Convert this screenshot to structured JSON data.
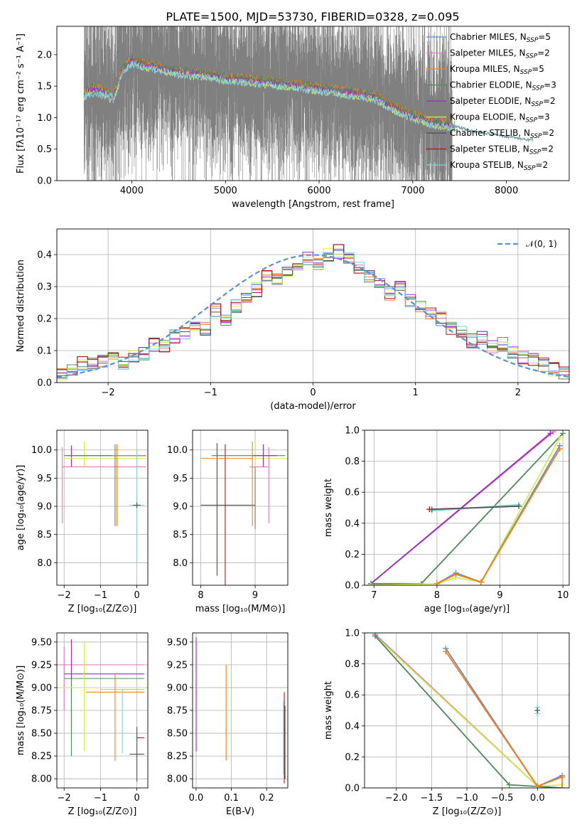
{
  "figure_title": "PLATE=1500, MJD=53730, FIBERID=0328, z=0.095",
  "colors": {
    "spectrum": "#808080",
    "chabrier_miles": "#5b8fd6",
    "salpeter_miles": "#e377c2",
    "kroupa_miles": "#ff7f0e",
    "chabrier_elodie": "#4d8a5c",
    "salpeter_elodie": "#9a2bbf",
    "kroupa_elodie": "#d4ee4a",
    "chabrier_stelib": "#505050",
    "salpeter_stelib": "#b01515",
    "kroupa_stelib": "#7fd6d6",
    "normal": "#5b8fd6"
  },
  "chart_data": [
    {
      "id": "spectrum",
      "type": "line",
      "title": "PLATE=1500, MJD=53730, FIBERID=0328, z=0.095",
      "xlabel": "wavelength [Angstrom, rest frame]",
      "ylabel": "Flux [fλ10⁻¹⁷ erg cm⁻² s⁻¹ A⁻¹]",
      "xlim": [
        3200,
        8670
      ],
      "ylim": [
        0,
        2.45
      ],
      "xticks": [
        4000,
        5000,
        6000,
        7000,
        8000
      ],
      "yticks": [
        0.0,
        0.5,
        1.0,
        1.5,
        2.0
      ],
      "ytick_labels": [
        "0.0",
        "0.5",
        "1.0",
        "1.5",
        "2.0"
      ],
      "legend_position": "upper right",
      "data_range_x": [
        3490,
        7420
      ],
      "model_continuum": {
        "x": [
          3490,
          3550,
          3620,
          3700,
          3800,
          3900,
          4000,
          4100,
          4300,
          4500,
          4800,
          5000,
          5200,
          5500,
          5800,
          6000,
          6200,
          6500,
          6600,
          6800,
          7000,
          7200,
          7400,
          7600,
          7800,
          8000,
          8200
        ],
        "y": [
          1.35,
          1.45,
          1.48,
          1.4,
          1.3,
          1.75,
          1.9,
          1.85,
          1.78,
          1.72,
          1.68,
          1.62,
          1.6,
          1.55,
          1.5,
          1.45,
          1.42,
          1.35,
          1.32,
          1.15,
          1.02,
          0.92,
          0.88,
          0.8,
          0.75,
          0.7,
          0.65
        ]
      },
      "legend": [
        {
          "label": "Chabrier MILES, N",
          "sub": "SSP",
          "n": "=5",
          "color_key": "chabrier_miles"
        },
        {
          "label": "Salpeter MILES, N",
          "sub": "SSP",
          "n": "=2",
          "color_key": "salpeter_miles"
        },
        {
          "label": "Kroupa MILES, N",
          "sub": "SSP",
          "n": "=5",
          "color_key": "kroupa_miles"
        },
        {
          "label": "Chabrier ELODIE, N",
          "sub": "SSP",
          "n": "=3",
          "color_key": "chabrier_elodie"
        },
        {
          "label": "Salpeter ELODIE, N",
          "sub": "SSP",
          "n": "=2",
          "color_key": "salpeter_elodie"
        },
        {
          "label": "Kroupa ELODIE, N",
          "sub": "SSP",
          "n": "=3",
          "color_key": "kroupa_elodie"
        },
        {
          "label": "Chabrier STELIB, N",
          "sub": "SSP",
          "n": "=2",
          "color_key": "chabrier_stelib"
        },
        {
          "label": "Salpeter STELIB, N",
          "sub": "SSP",
          "n": "=2",
          "color_key": "salpeter_stelib"
        },
        {
          "label": "Kroupa STELIB, N",
          "sub": "SSP",
          "n": "=2",
          "color_key": "kroupa_stelib"
        }
      ]
    },
    {
      "id": "residuals",
      "type": "line",
      "xlabel": "(data-model)/error",
      "ylabel": "Normed distribution",
      "xlim": [
        -2.5,
        2.5
      ],
      "ylim": [
        0,
        0.48
      ],
      "xticks": [
        -2,
        -1,
        0,
        1,
        2
      ],
      "xtick_labels": [
        "−2",
        "−1",
        "0",
        "1",
        "2"
      ],
      "yticks": [
        0.0,
        0.1,
        0.2,
        0.3,
        0.4
      ],
      "ytick_labels": [
        "0.0",
        "0.1",
        "0.2",
        "0.3",
        "0.4"
      ],
      "legend": [
        {
          "label": "𝒩(0, 1)",
          "color_key": "normal",
          "style": "dashed"
        }
      ],
      "bin_edges": [
        -2.5,
        -2.4,
        -2.3,
        -2.2,
        -2.1,
        -2.0,
        -1.9,
        -1.8,
        -1.7,
        -1.6,
        -1.5,
        -1.4,
        -1.3,
        -1.2,
        -1.1,
        -1.0,
        -0.9,
        -0.8,
        -0.7,
        -0.6,
        -0.5,
        -0.4,
        -0.3,
        -0.2,
        -0.1,
        0.0,
        0.1,
        0.2,
        0.3,
        0.4,
        0.5,
        0.6,
        0.7,
        0.8,
        0.9,
        1.0,
        1.1,
        1.2,
        1.3,
        1.4,
        1.5,
        1.6,
        1.7,
        1.8,
        1.9,
        2.0,
        2.1,
        2.2,
        2.3,
        2.4,
        2.5
      ],
      "histogram_reference": [
        0.03,
        0.045,
        0.06,
        0.055,
        0.07,
        0.075,
        0.06,
        0.085,
        0.09,
        0.12,
        0.11,
        0.145,
        0.15,
        0.185,
        0.17,
        0.225,
        0.19,
        0.24,
        0.27,
        0.29,
        0.33,
        0.32,
        0.35,
        0.37,
        0.39,
        0.37,
        0.4,
        0.41,
        0.39,
        0.36,
        0.33,
        0.31,
        0.28,
        0.3,
        0.26,
        0.24,
        0.22,
        0.2,
        0.17,
        0.16,
        0.13,
        0.14,
        0.11,
        0.12,
        0.09,
        0.08,
        0.07,
        0.055,
        0.04,
        0.03
      ]
    },
    {
      "id": "age_vs_Z",
      "type": "scatter",
      "xlabel": "Z [log₁₀(Z/Z⊙)]",
      "ylabel": "age  [log₁₀(age/yr)]",
      "xlim": [
        -2.2,
        0.3
      ],
      "ylim": [
        7.6,
        10.35
      ],
      "xticks": [
        -2,
        -1,
        0
      ],
      "xtick_labels": [
        "−2",
        "−1",
        "0"
      ],
      "yticks": [
        8.0,
        8.5,
        9.0,
        9.5,
        10.0
      ],
      "ytick_labels": [
        "8.0",
        "8.5",
        "9.0",
        "9.5",
        "10.0"
      ],
      "crosses": [
        {
          "x": -2.05,
          "xerr": [
            0.0,
            2.3
          ],
          "y": 9.7,
          "yerr": [
            1.0,
            0.35
          ],
          "color_key": "salpeter_miles"
        },
        {
          "x": -1.8,
          "xerr": [
            0.15,
            2.05
          ],
          "y": 9.9,
          "yerr": [
            0.2,
            0.18
          ],
          "color_key": "salpeter_elodie"
        },
        {
          "x": -1.45,
          "xerr": [
            0.55,
            1.7
          ],
          "y": 9.85,
          "yerr": [
            0.15,
            0.3
          ],
          "color_key": "kroupa_elodie"
        },
        {
          "x": -0.6,
          "xerr": [
            1.4,
            0.85
          ],
          "y": 9.9,
          "yerr": [
            1.25,
            0.2
          ],
          "color_key": "chabrier_elodie"
        },
        {
          "x": -0.55,
          "xerr": [
            0.15,
            0.8
          ],
          "y": 9.9,
          "yerr": [
            1.25,
            0.2
          ],
          "color_key": "kroupa_miles"
        },
        {
          "x": 0.0,
          "xerr": [
            0.2,
            0.2
          ],
          "y": 9.02,
          "yerr": [
            1.0,
            1.0
          ],
          "color_key": "kroupa_stelib"
        },
        {
          "x": 0.0,
          "xerr": [
            0.1,
            0.1
          ],
          "y": 9.02,
          "yerr": [
            0.05,
            0.05
          ],
          "color_key": "chabrier_stelib"
        }
      ]
    },
    {
      "id": "age_vs_mass",
      "type": "scatter",
      "xlabel": "mass [log₁₀(M/M⊙)]",
      "xlim": [
        7.85,
        9.6
      ],
      "ylim": [
        7.6,
        10.35
      ],
      "xticks": [
        8,
        9
      ],
      "xtick_labels": [
        "8",
        "9"
      ],
      "yticks": [
        8.0,
        8.5,
        9.0,
        9.5,
        10.0
      ],
      "ytick_labels": [
        "8.0",
        "8.5",
        "9.0",
        "9.5",
        "10.0"
      ],
      "crosses": [
        {
          "x": 8.3,
          "xerr": [
            0.3,
            0.7
          ],
          "y": 9.02,
          "yerr": [
            1.25,
            1.1
          ],
          "color_key": "chabrier_stelib"
        },
        {
          "x": 8.45,
          "xerr": [
            0.0,
            0.0
          ],
          "y": 9.0,
          "yerr": [
            1.45,
            1.1
          ],
          "color_key": "salpeter_stelib"
        },
        {
          "x": 9.0,
          "xerr": [
            0.8,
            0.55
          ],
          "y": 9.9,
          "yerr": [
            1.3,
            0.25
          ],
          "color_key": "chabrier_elodie"
        },
        {
          "x": 9.0,
          "xerr": [
            0.0,
            0.6
          ],
          "y": 9.85,
          "yerr": [
            0.15,
            0.3
          ],
          "color_key": "kroupa_elodie"
        },
        {
          "x": 9.25,
          "xerr": [
            0.35,
            0.0
          ],
          "y": 9.7,
          "yerr": [
            1.0,
            0.35
          ],
          "color_key": "salpeter_miles"
        },
        {
          "x": 9.15,
          "xerr": [
            0.2,
            0.25
          ],
          "y": 9.9,
          "yerr": [
            0.2,
            0.2
          ],
          "color_key": "salpeter_elodie"
        },
        {
          "x": 8.95,
          "xerr": [
            0.95,
            0.0
          ],
          "y": 9.85,
          "yerr": [
            1.2,
            0.3
          ],
          "color_key": "kroupa_miles"
        }
      ]
    },
    {
      "id": "mass_weight_vs_age",
      "type": "line",
      "xlabel": "age  [log₁₀(age/yr)]",
      "ylabel": "mass weight",
      "xlim": [
        6.85,
        10.1
      ],
      "ylim": [
        0,
        1
      ],
      "xticks": [
        7,
        8,
        9,
        10
      ],
      "xtick_labels": [
        "7",
        "8",
        "9",
        "10"
      ],
      "yticks": [
        0.0,
        0.2,
        0.4,
        0.6,
        0.8,
        1.0
      ],
      "ytick_labels": [
        "0.0",
        "0.2",
        "0.4",
        "0.6",
        "0.8",
        "1.0"
      ],
      "series": [
        {
          "color_key": "salpeter_miles",
          "x": [
            6.95,
            9.85
          ],
          "y": [
            0.01,
            0.99
          ]
        },
        {
          "color_key": "salpeter_elodie",
          "x": [
            6.95,
            9.8
          ],
          "y": [
            0.01,
            0.98
          ]
        },
        {
          "color_key": "chabrier_elodie",
          "x": [
            6.95,
            7.75,
            10.0
          ],
          "y": [
            0.01,
            0.01,
            0.98
          ]
        },
        {
          "color_key": "kroupa_elodie",
          "x": [
            6.95,
            8.0,
            8.3,
            8.7,
            9.95
          ],
          "y": [
            0.0,
            0.01,
            0.05,
            0.02,
            0.95
          ]
        },
        {
          "color_key": "chabrier_miles",
          "x": [
            8.0,
            8.3,
            8.7,
            9.95
          ],
          "y": [
            0.01,
            0.08,
            0.02,
            0.9
          ]
        },
        {
          "color_key": "kroupa_miles",
          "x": [
            8.0,
            8.3,
            8.7,
            9.95
          ],
          "y": [
            0.01,
            0.07,
            0.02,
            0.88
          ]
        },
        {
          "color_key": "kroupa_stelib",
          "x": [
            7.92,
            9.3
          ],
          "y": [
            0.48,
            0.52
          ]
        },
        {
          "color_key": "chabrier_stelib",
          "x": [
            7.92,
            9.3
          ],
          "y": [
            0.49,
            0.51
          ]
        },
        {
          "color_key": "salpeter_stelib",
          "x": [
            7.88
          ],
          "y": [
            0.49
          ]
        }
      ]
    },
    {
      "id": "mass_vs_Z",
      "type": "scatter",
      "xlabel": "Z [log₁₀(Z/Z⊙)]",
      "ylabel": "mass [log₁₀(M/M⊙)]",
      "xlim": [
        -2.2,
        0.3
      ],
      "ylim": [
        7.9,
        9.6
      ],
      "xticks": [
        -2,
        -1,
        0
      ],
      "xtick_labels": [
        "−2",
        "−1",
        "0"
      ],
      "yticks": [
        8.0,
        8.25,
        8.5,
        8.75,
        9.0,
        9.25,
        9.5
      ],
      "ytick_labels": [
        "8.00",
        "8.25",
        "8.50",
        "8.75",
        "9.00",
        "9.25",
        "9.50"
      ],
      "crosses": [
        {
          "x": -2.0,
          "xerr": [
            0.2,
            2.2
          ],
          "y": 9.25,
          "yerr": [
            0.5,
            0.2
          ],
          "color_key": "salpeter_miles"
        },
        {
          "x": -1.8,
          "xerr": [
            0.2,
            2.0
          ],
          "y": 9.15,
          "yerr": [
            0.7,
            0.38
          ],
          "color_key": "salpeter_elodie"
        },
        {
          "x": -1.8,
          "xerr": [
            0.2,
            2.0
          ],
          "y": 9.1,
          "yerr": [
            0.85,
            0.0
          ],
          "color_key": "chabrier_elodie"
        },
        {
          "x": -1.45,
          "xerr": [
            0.7,
            1.7
          ],
          "y": 9.0,
          "yerr": [
            0.7,
            0.5
          ],
          "color_key": "kroupa_elodie"
        },
        {
          "x": -0.6,
          "xerr": [
            0.8,
            0.8
          ],
          "y": 8.95,
          "yerr": [
            0.75,
            0.2
          ],
          "color_key": "kroupa_miles"
        },
        {
          "x": -0.4,
          "xerr": [
            0.6,
            0.6
          ],
          "y": 8.98,
          "yerr": [
            0.7,
            0.0
          ],
          "color_key": "kroupa_stelib"
        },
        {
          "x": 0.0,
          "xerr": [
            0.2,
            0.2
          ],
          "y": 8.27,
          "yerr": [
            0.3,
            0.3
          ],
          "color_key": "chabrier_stelib"
        },
        {
          "x": 0.0,
          "xerr": [
            0.0,
            0.2
          ],
          "y": 8.45,
          "yerr": [
            0.0,
            0.0
          ],
          "color_key": "salpeter_stelib"
        }
      ]
    },
    {
      "id": "mass_vs_ebv",
      "type": "scatter",
      "xlabel": "E(B-V)",
      "xlim": [
        -0.01,
        0.26
      ],
      "ylim": [
        7.9,
        9.6
      ],
      "xticks": [
        0.0,
        0.1,
        0.2
      ],
      "xtick_labels": [
        "0.0",
        "0.1",
        "0.2"
      ],
      "yticks": [
        8.0,
        8.25,
        8.5,
        8.75,
        9.0,
        9.25,
        9.5
      ],
      "ytick_labels": [
        "8.00",
        "8.25",
        "8.50",
        "8.75",
        "9.00",
        "9.25",
        "9.50"
      ],
      "crosses": [
        {
          "x": 0.0,
          "xerr": [
            0.0,
            0.0
          ],
          "y": 9.0,
          "yerr": [
            0.7,
            0.55
          ],
          "color_key": "salpeter_elodie"
        },
        {
          "x": 0.003,
          "xerr": [
            0.0,
            0.0
          ],
          "y": 9.0,
          "yerr": [
            0.7,
            0.5
          ],
          "color_key": "kroupa_elodie"
        },
        {
          "x": 0.085,
          "xerr": [
            0.0,
            0.0
          ],
          "y": 9.0,
          "yerr": [
            0.8,
            0.25
          ],
          "color_key": "kroupa_miles"
        },
        {
          "x": 0.25,
          "xerr": [
            0.0,
            0.0
          ],
          "y": 8.5,
          "yerr": [
            0.55,
            0.45
          ],
          "color_key": "salpeter_stelib"
        },
        {
          "x": 0.248,
          "xerr": [
            0.0,
            0.0
          ],
          "y": 8.45,
          "yerr": [
            0.4,
            0.4
          ],
          "color_key": "kroupa_stelib"
        },
        {
          "x": 0.252,
          "xerr": [
            0.0,
            0.0
          ],
          "y": 8.4,
          "yerr": [
            0.4,
            0.4
          ],
          "color_key": "chabrier_stelib"
        }
      ]
    },
    {
      "id": "mass_weight_vs_Z",
      "type": "line",
      "xlabel": "Z [log₁₀(Z/Z⊙)]",
      "ylabel": "mass weight",
      "xlim": [
        -2.45,
        0.45
      ],
      "ylim": [
        0,
        1
      ],
      "xticks": [
        -2.0,
        -1.5,
        -1.0,
        -0.5,
        0.0
      ],
      "xtick_labels": [
        "−2.0",
        "−1.5",
        "−1.0",
        "−0.5",
        "0.0"
      ],
      "yticks": [
        0.0,
        0.2,
        0.4,
        0.6,
        0.8,
        1.0
      ],
      "ytick_labels": [
        "0.0",
        "0.2",
        "0.4",
        "0.6",
        "0.8",
        "1.0"
      ],
      "series": [
        {
          "color_key": "salpeter_elodie",
          "x": [
            -2.3,
            0.0
          ],
          "y": [
            0.99,
            0.01
          ]
        },
        {
          "color_key": "salpeter_miles",
          "x": [
            -2.3,
            0.0
          ],
          "y": [
            0.99,
            0.01
          ]
        },
        {
          "color_key": "kroupa_elodie",
          "x": [
            -2.3,
            0.0,
            0.35
          ],
          "y": [
            0.98,
            0.01,
            0.02
          ]
        },
        {
          "color_key": "chabrier_elodie",
          "x": [
            -2.3,
            -0.4,
            0.35
          ],
          "y": [
            0.98,
            0.02,
            0.0
          ]
        },
        {
          "color_key": "chabrier_miles",
          "x": [
            -1.3,
            0.0,
            0.35
          ],
          "y": [
            0.9,
            0.01,
            0.08
          ]
        },
        {
          "color_key": "kroupa_miles",
          "x": [
            -1.3,
            0.0,
            0.35,
            0.35
          ],
          "y": [
            0.88,
            0.01,
            0.07,
            0.0
          ]
        },
        {
          "color_key": "kroupa_stelib",
          "x": [
            0.0,
            0.0
          ],
          "y": [
            0.48,
            0.52
          ]
        },
        {
          "color_key": "chabrier_stelib",
          "x": [
            0.0
          ],
          "y": [
            0.5
          ]
        }
      ]
    }
  ]
}
